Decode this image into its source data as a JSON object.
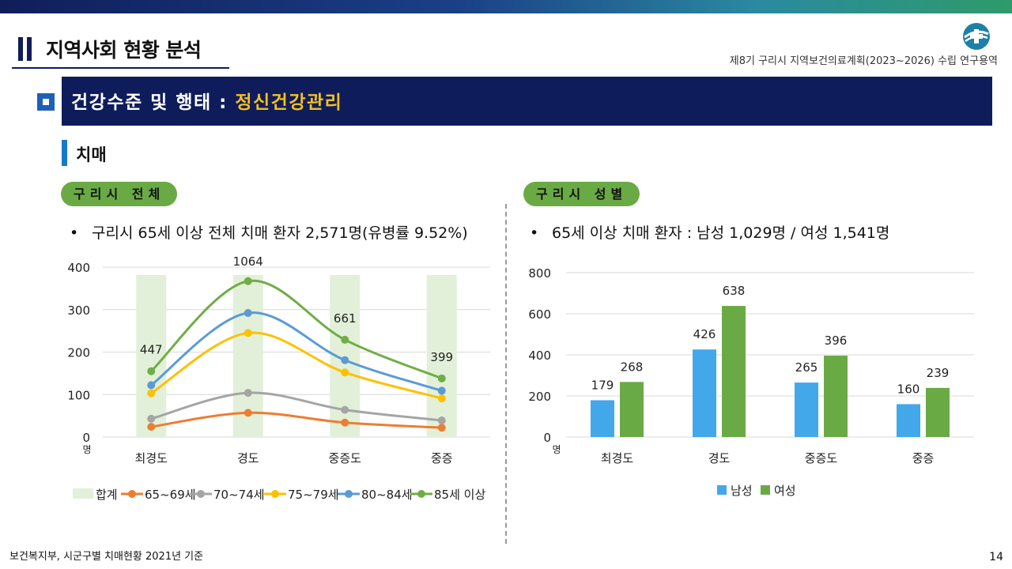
{
  "header": {
    "title": "지역사회 현황 분석",
    "project_note": "제8기 구리시 지역보건의료계획(2023~2026) 수립 연구용역"
  },
  "section": {
    "title_prefix": "건강수준 및 행태 : ",
    "title_highlight": "정신건강관리"
  },
  "subsection": {
    "title": "치매"
  },
  "left_panel": {
    "pill": "구리시 전체",
    "bullet": "구리시 65세 이상 전체 치매 환자 2,571명(유병률 9.52%)"
  },
  "right_panel": {
    "pill": "구리시 성별",
    "bullet": "65세 이상 치매 환자 : 남성 1,029명 / 여성 1,541명"
  },
  "footer": {
    "source": "보건복지부, 시군구별 치매현황 2021년 기준",
    "page_number": "14"
  },
  "colors": {
    "navy": "#0f1c5c",
    "highlight": "#f3c11f",
    "pill_green": "#6aaa45"
  },
  "chart_data": [
    {
      "type": "bar+line",
      "unit_label": "명",
      "categories": [
        "최경도",
        "경도",
        "중증도",
        "중증"
      ],
      "ylim": [
        0,
        400
      ],
      "yticks": [
        0,
        100,
        200,
        300,
        400
      ],
      "grid": true,
      "legend": "bottom",
      "bar_series": {
        "name": "합계",
        "values": [
          447,
          1064,
          661,
          399
        ],
        "color": "#e2f0d9"
      },
      "series": [
        {
          "name": "65~69세",
          "values": [
            24,
            57,
            34,
            22
          ],
          "color": "#ed7d31"
        },
        {
          "name": "70~74세",
          "values": [
            43,
            104,
            64,
            39
          ],
          "color": "#a5a5a5"
        },
        {
          "name": "75~79세",
          "values": [
            103,
            245,
            152,
            91
          ],
          "color": "#ffc000"
        },
        {
          "name": "80~84세",
          "values": [
            122,
            292,
            181,
            109
          ],
          "color": "#5b9bd5"
        },
        {
          "name": "85세 이상",
          "values": [
            155,
            367,
            229,
            138
          ],
          "color": "#70ad47"
        }
      ]
    },
    {
      "type": "bar",
      "unit_label": "명",
      "categories": [
        "최경도",
        "경도",
        "중증도",
        "중증"
      ],
      "ylim": [
        0,
        800
      ],
      "yticks": [
        0,
        200,
        400,
        600,
        800
      ],
      "grid": true,
      "legend": "bottom",
      "series": [
        {
          "name": "남성",
          "values": [
            179,
            426,
            265,
            160
          ],
          "color": "#42a8ea"
        },
        {
          "name": "여성",
          "values": [
            268,
            638,
            396,
            239
          ],
          "color": "#6aaa45"
        }
      ]
    }
  ]
}
